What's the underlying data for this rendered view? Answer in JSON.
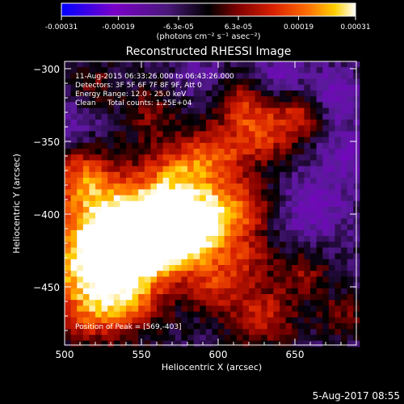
{
  "chart_data": {
    "type": "heatmap",
    "title": "Reconstructed RHESSI Image",
    "xlabel": "Heliocentric X (arcsec)",
    "ylabel": "Heliocentric Y (arcsec)",
    "xlim": [
      500,
      690
    ],
    "ylim": [
      -490,
      -295
    ],
    "x_ticks": [
      "500",
      "550",
      "600",
      "650"
    ],
    "y_ticks": [
      "-300",
      "-350",
      "-400",
      "-450"
    ],
    "colorbar": {
      "range": [
        -0.00031,
        0.00031
      ],
      "tick_labels": [
        "-0.00031",
        "-0.00019",
        "-6.3e-05",
        "6.3e-05",
        "0.00019",
        "0.00031"
      ],
      "unit_label": "(photons cm⁻² s⁻¹ asec⁻²)",
      "colormap": [
        "#0000ff",
        "#7a00c8",
        "#5a1a9a",
        "#000000",
        "#800000",
        "#d82000",
        "#ff7000",
        "#ffd000",
        "#ffffff"
      ]
    },
    "annotations": [
      "11-Aug-2015 06:33:26.000 to 06:43:26.000",
      "Detectors: 3F 5F 6F 7F 8F 9F, Att 0",
      "Energy Range: 12.0 - 25.0 keV",
      "Clean     Total counts: 1.25E+04"
    ],
    "peak_label": "Position of Peak = [569,-403]",
    "peak": [
      569,
      -403
    ],
    "blobs": [
      {
        "x": 515,
        "y": -435,
        "amp": 1.0,
        "r": 22
      },
      {
        "x": 530,
        "y": -400,
        "amp": 0.75,
        "r": 20
      },
      {
        "x": 569,
        "y": -403,
        "amp": 1.0,
        "r": 20
      },
      {
        "x": 550,
        "y": -425,
        "amp": 0.8,
        "r": 18
      },
      {
        "x": 585,
        "y": -420,
        "amp": 0.55,
        "r": 16
      },
      {
        "x": 510,
        "y": -375,
        "amp": 0.6,
        "r": 14
      },
      {
        "x": 540,
        "y": -460,
        "amp": 0.6,
        "r": 16
      },
      {
        "x": 515,
        "y": -470,
        "amp": 0.35,
        "r": 14
      },
      {
        "x": 575,
        "y": -370,
        "amp": 0.55,
        "r": 16
      },
      {
        "x": 600,
        "y": -360,
        "amp": 0.5,
        "r": 14
      },
      {
        "x": 620,
        "y": -395,
        "amp": 0.45,
        "r": 14
      },
      {
        "x": 600,
        "y": -400,
        "amp": 0.5,
        "r": 14
      },
      {
        "x": 630,
        "y": -345,
        "amp": 0.55,
        "r": 14
      },
      {
        "x": 655,
        "y": -330,
        "amp": 0.5,
        "r": 12
      },
      {
        "x": 615,
        "y": -325,
        "amp": 0.45,
        "r": 12
      },
      {
        "x": 555,
        "y": -330,
        "amp": 0.3,
        "r": 12
      },
      {
        "x": 520,
        "y": -310,
        "amp": 0.25,
        "r": 10
      },
      {
        "x": 600,
        "y": -450,
        "amp": 0.45,
        "r": 14
      },
      {
        "x": 630,
        "y": -470,
        "amp": 0.5,
        "r": 14
      },
      {
        "x": 655,
        "y": -440,
        "amp": 0.35,
        "r": 12
      },
      {
        "x": 620,
        "y": -430,
        "amp": 0.35,
        "r": 12
      },
      {
        "x": 680,
        "y": -470,
        "amp": 0.3,
        "r": 10
      },
      {
        "x": 660,
        "y": -395,
        "amp": -0.35,
        "r": 18
      },
      {
        "x": 675,
        "y": -320,
        "amp": -0.4,
        "r": 14
      },
      {
        "x": 640,
        "y": -305,
        "amp": -0.3,
        "r": 12
      },
      {
        "x": 685,
        "y": -360,
        "amp": -0.3,
        "r": 12
      },
      {
        "x": 590,
        "y": -305,
        "amp": -0.25,
        "r": 10
      },
      {
        "x": 505,
        "y": -340,
        "amp": -0.25,
        "r": 10
      }
    ]
  },
  "footer": {
    "timestamp": "5-Aug-2017 08:55"
  }
}
